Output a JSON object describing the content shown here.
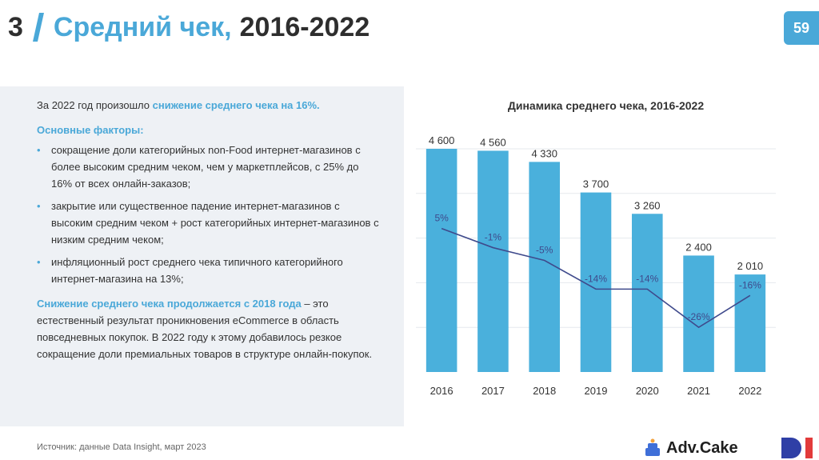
{
  "header": {
    "section_number": "3",
    "title_highlight": "Средний чек,",
    "title_rest": "2016-2022",
    "page_number": "59"
  },
  "text": {
    "intro_prefix": "За 2022 год произошло ",
    "intro_highlight": "снижение среднего чека на 16%.",
    "factors_heading": "Основные факторы:",
    "bullets": [
      "сокращение доли категорийных non-Food интернет-магазинов с более высоким средним чеком, чем у маркетплейсов, с 25% до 16% от всех онлайн-заказов;",
      "закрытие или существенное падение интернет-магазинов с высоким средним чеком + рост категорийных интернет-магазинов с низким средним чеком;",
      "инфляционный рост среднего чека типичного категорийного интернет-магазина на 13%;"
    ],
    "conclusion_highlight": "Снижение среднего чека продолжается с 2018 года",
    "conclusion_rest": " – это естественный результат проникновения eCommerce в область повседневных покупок. В 2022 году к этому добавилось резкое сокращение доли премиальных товаров в структуре онлайн-покупок."
  },
  "source": "Источник: данные Data Insight, март 2023",
  "logos": {
    "adv_cake": "Adv.Cake"
  },
  "colors": {
    "accent": "#4aa8d8",
    "bar": "#4ab0dc",
    "line": "#3f4a8c",
    "panel": "#eef1f5"
  },
  "chart_data": {
    "type": "bar",
    "title": "Динамика среднего чека, 2016-2022",
    "categories": [
      "2016",
      "2017",
      "2018",
      "2019",
      "2020",
      "2021",
      "2022"
    ],
    "series": [
      {
        "values": [
          4600,
          4560,
          4330,
          3700,
          3260,
          2400,
          2010
        ],
        "labels": [
          "4 600",
          "4 560",
          "4 330",
          "3 700",
          "3 260",
          "2 400",
          "2 010"
        ]
      },
      {
        "type": "line",
        "values": [
          5,
          -1,
          -5,
          -14,
          -14,
          -26,
          -16
        ],
        "labels": [
          "5%",
          "-1%",
          "-5%",
          "-14%",
          "-14%",
          "-26%",
          "-16%"
        ]
      }
    ],
    "ylim": [
      0,
      4600
    ],
    "y2lim": [
      -40,
      30
    ],
    "grid": true,
    "xlabel": "",
    "ylabel": ""
  }
}
